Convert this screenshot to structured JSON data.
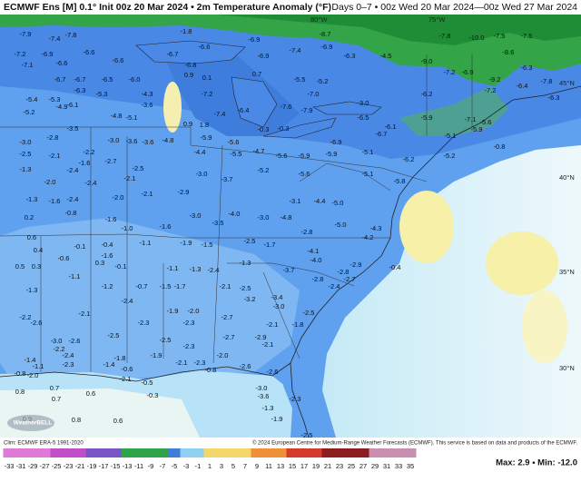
{
  "header": {
    "title": "ECMWF Ens [M] 0.1° Init 00z 20 Mar 2024 • 2m Temperature Anomaly (°F)",
    "period": "Days 0–7 • 00z Wed 20 Mar 2024—00z Wed 27 Mar 2024"
  },
  "map": {
    "lat_labels": [
      "45°N",
      "40°N",
      "35°N",
      "30°N"
    ],
    "lon_labels": [
      "80°W",
      "75°W"
    ],
    "labels": [
      "-7.9",
      "-7.4",
      "-7.8",
      "-7.2",
      "-6.9",
      "-7.1",
      "-6.6",
      "-6.6",
      "-6.6",
      "-6.7",
      "-1.8",
      "-6.6",
      "-6.8",
      "-6.9",
      "-6.9",
      "-7.4",
      "-6.9",
      "-8.7",
      "-6.3",
      "-4.5",
      "-7.8",
      "-10.0",
      "-7.5",
      "-7.5",
      "-8.6",
      "-6.3",
      "-9.0",
      "-7.2",
      "-6.9",
      "-9.2",
      "-6.4",
      "-7.8",
      "-6.3",
      "-6.7",
      "-6.5",
      "-6.0",
      "-6.7",
      "-6.3",
      "-5.3",
      "-5.4",
      "-5.3",
      "-4.9",
      "-6.1",
      "-5.2",
      "-4.3",
      "-3.6",
      "0.9",
      "0.1",
      "-7.2",
      "-7.4",
      "-6.4",
      "0.7",
      "-5.5",
      "-5.2",
      "-7.0",
      "-7.6",
      "-7.9",
      "-0.3",
      "-0.3",
      "-3.0",
      "-6.5",
      "-6.1",
      "-6.7",
      "-6.2",
      "-5.9",
      "-5.1",
      "-7.1",
      "-5.6",
      "-5.9",
      "-7.2",
      "0.9",
      "1.8",
      "-5.9",
      "-3.5",
      "-4.8",
      "-5.1",
      "-3.0",
      "-3.6",
      "-3.6",
      "-4.8",
      "-5.6",
      "-6.9",
      "-3.0",
      "-2.8",
      "-2.5",
      "-2.1",
      "-2.2",
      "-1.6",
      "-2.7",
      "-2.5",
      "-2.1",
      "-4.4",
      "-5.5",
      "-4.7",
      "-5.2",
      "-5.6",
      "-5.9",
      "-5.9",
      "-5.1",
      "-6.2",
      "-5.2",
      "-0.8",
      "-1.3",
      "-2.4",
      "-2.0",
      "-1.6",
      "-2.4",
      "-1.3",
      "-0.8",
      "-2.4",
      "-2.0",
      "-2.1",
      "-2.9",
      "-3.0",
      "-3.7",
      "-5.6",
      "-5.1",
      "-5.8",
      "-3.1",
      "-4.4",
      "-5.0",
      "-4.0",
      "-3.0",
      "-4.8",
      "-3.5",
      "-3.0",
      "-1.6",
      "-1.6",
      "0.2",
      "0.6",
      "-1.0",
      "-1.1",
      "-1.9",
      "-1.5",
      "-2.5",
      "-1.7",
      "-2.8",
      "-5.0",
      "-4.2",
      "-4.3",
      "0.4",
      "-0.1",
      "-0.4",
      "-1.6",
      "-0.6",
      "0.3",
      "-0.1",
      "0.5",
      "0.3",
      "-4.1",
      "-4.0",
      "-1.3",
      "-1.1",
      "-1.3",
      "-2.4",
      "-3.7",
      "-2.8",
      "-2.9",
      "-0.4",
      "-1.1",
      "-2.8",
      "-1.3",
      "-1.2",
      "-0.7",
      "-1.5",
      "-1.7",
      "-2.1",
      "-2.5",
      "-2.4",
      "-2.7",
      "-3.2",
      "-3.4",
      "-3.0",
      "-2.5",
      "-2.4",
      "-2.1",
      "-1.9",
      "-2.0",
      "-2.2",
      "-2.6",
      "-2.3",
      "-2.3",
      "-2.7",
      "-2.1",
      "-1.8",
      "-3.0",
      "-2.6",
      "-2.5",
      "-2.5",
      "-2.3",
      "-2.7",
      "-2.9",
      "-2.1",
      "-2.2",
      "-2.4",
      "-1.4",
      "-1.1",
      "-2.3",
      "-1.9",
      "-1.8",
      "-1.4",
      "-0.6",
      "-2.1",
      "-2.3",
      "-2.0",
      "-2.6",
      "-0.8",
      "-2.6",
      "-0.8",
      "-2.0",
      "-2.1",
      "-0.5",
      "0.8",
      "0.7",
      "0.7",
      "0.6",
      "-0.3",
      "-3.0",
      "-3.6",
      "-2.3",
      "0.9",
      "0.8",
      "0.6",
      "-1.3",
      "-1.9",
      "-2.5"
    ]
  },
  "footer": {
    "climo": "Clim: ECMWF ERA-5 1991-2020",
    "copyright": "© 2024 European Centre for Medium-Range Weather Forecasts (ECMWF). This service is based on data and products of the ECMWF.",
    "logo": "WeatherBELL",
    "extremes": "Max: 2.9 • Min: -12.0"
  },
  "colorbar": {
    "ticks": [
      -33,
      -31,
      -29,
      -27,
      -25,
      -23,
      -21,
      -19,
      -17,
      -15,
      -13,
      -11,
      -9,
      -7,
      -5,
      -3,
      -1,
      1,
      3,
      5,
      7,
      9,
      11,
      13,
      15,
      17,
      19,
      21,
      23,
      25,
      27,
      29,
      31,
      33,
      35
    ]
  }
}
